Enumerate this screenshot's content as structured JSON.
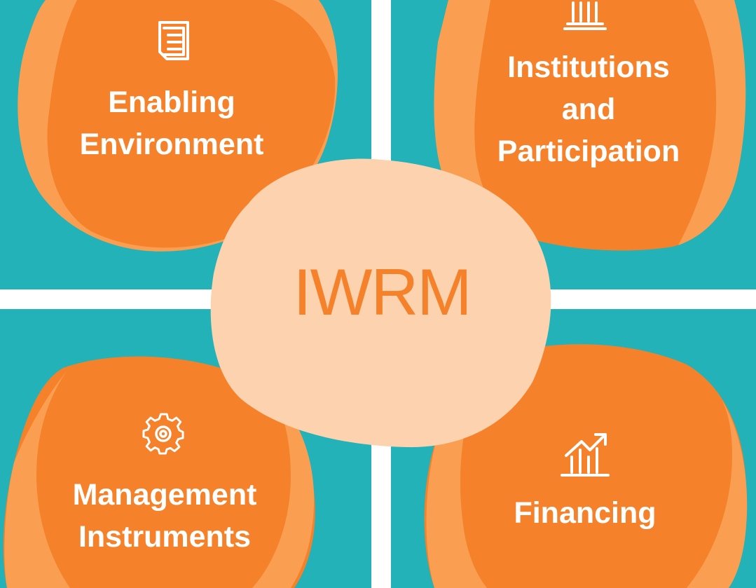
{
  "title": "IWRM",
  "colors": {
    "teal": "#22b2b8",
    "orange": "#f5822a",
    "light_orange": "#fa9f52",
    "peach": "#fdd2ae",
    "white": "#ffffff"
  },
  "components": [
    {
      "icon": "document-icon",
      "lines": [
        "Enabling",
        "Environment"
      ]
    },
    {
      "icon": "institution-building-icon",
      "lines": [
        "Institutions",
        "and",
        "Participation"
      ]
    },
    {
      "icon": "gear-icon",
      "lines": [
        "Management",
        "Instruments"
      ]
    },
    {
      "icon": "growth-chart-icon",
      "lines": [
        "Financing"
      ]
    }
  ]
}
